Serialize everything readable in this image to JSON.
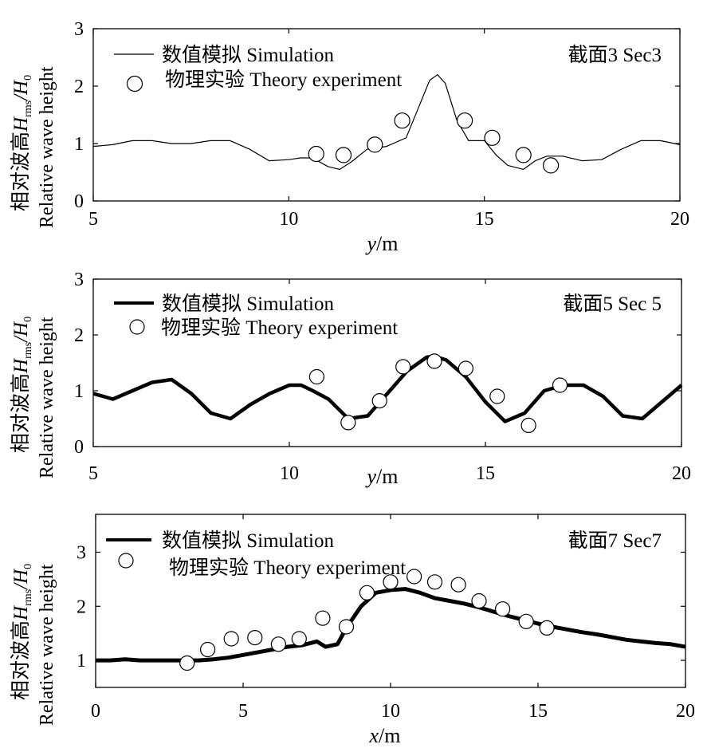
{
  "chart_data": [
    {
      "type": "line",
      "section_label": "截面3 Sec3",
      "xlabel_var": "y",
      "xlabel_unit": "/m",
      "ylabel_cn": "相对波高",
      "ylabel_var": "H",
      "ylabel_sub": "rms",
      "ylabel_tail": "/H",
      "ylabel_sub2": "0",
      "ylabel_en": "Relative wave height",
      "xlim": [
        5,
        20
      ],
      "ylim": [
        0,
        3
      ],
      "xticks": [
        5,
        10,
        15,
        20
      ],
      "yticks": [
        0,
        1,
        2,
        3
      ],
      "series": [
        {
          "name": "数值模拟 Simulation",
          "style": "thin-line",
          "x": [
            5.0,
            5.5,
            6.0,
            6.5,
            7.0,
            7.5,
            8.0,
            8.5,
            9.0,
            9.5,
            10.0,
            10.3,
            10.6,
            11.0,
            11.3,
            11.6,
            12.0,
            12.5,
            13.0,
            13.3,
            13.6,
            13.8,
            14.0,
            14.3,
            14.6,
            15.0,
            15.3,
            15.6,
            16.0,
            16.3,
            16.6,
            17.0,
            17.5,
            18.0,
            18.5,
            19.0,
            19.5,
            20.0
          ],
          "y": [
            0.95,
            0.98,
            1.05,
            1.05,
            1.0,
            1.0,
            1.05,
            1.05,
            0.9,
            0.7,
            0.72,
            0.75,
            0.75,
            0.6,
            0.55,
            0.68,
            0.9,
            0.95,
            1.1,
            1.6,
            2.1,
            2.2,
            2.05,
            1.4,
            1.05,
            1.05,
            0.8,
            0.62,
            0.55,
            0.7,
            0.78,
            0.78,
            0.7,
            0.72,
            0.9,
            1.05,
            1.05,
            0.98
          ]
        },
        {
          "name": "物理实验  Theory experiment",
          "style": "circles",
          "x": [
            10.7,
            11.4,
            12.2,
            12.9,
            14.5,
            15.2,
            16.0,
            16.7
          ],
          "y": [
            0.82,
            0.8,
            0.98,
            1.4,
            1.4,
            1.1,
            0.8,
            0.62
          ]
        }
      ]
    },
    {
      "type": "line",
      "section_label": "截面5  Sec 5",
      "xlabel_var": "y",
      "xlabel_unit": "/m",
      "ylabel_cn": "相对波高",
      "ylabel_var": "H",
      "ylabel_sub": "rms",
      "ylabel_tail": "/H",
      "ylabel_sub2": "0",
      "ylabel_en": "Relative wave height",
      "xlim": [
        5,
        20
      ],
      "ylim": [
        0,
        3
      ],
      "xticks": [
        5,
        10,
        15,
        20
      ],
      "yticks": [
        0,
        1,
        2,
        3
      ],
      "series": [
        {
          "name": "数值模拟 Simulation",
          "style": "thick-line",
          "x": [
            5.0,
            5.5,
            6.0,
            6.5,
            7.0,
            7.5,
            8.0,
            8.5,
            9.0,
            9.5,
            10.0,
            10.3,
            10.6,
            11.0,
            11.5,
            12.0,
            12.5,
            13.0,
            13.5,
            13.7,
            14.0,
            14.5,
            15.0,
            15.5,
            16.0,
            16.5,
            17.0,
            17.5,
            18.0,
            18.5,
            19.0,
            19.5,
            20.0
          ],
          "y": [
            0.95,
            0.85,
            1.0,
            1.15,
            1.2,
            0.95,
            0.6,
            0.5,
            0.75,
            0.95,
            1.1,
            1.1,
            1.0,
            0.85,
            0.5,
            0.55,
            0.95,
            1.35,
            1.6,
            1.62,
            1.55,
            1.25,
            0.8,
            0.45,
            0.6,
            1.0,
            1.1,
            1.1,
            0.9,
            0.55,
            0.5,
            0.8,
            1.1
          ]
        },
        {
          "name": "物理实验 Theory  experiment",
          "style": "circles",
          "x": [
            10.7,
            11.5,
            12.3,
            12.9,
            13.7,
            14.5,
            15.3,
            16.1,
            16.9
          ],
          "y": [
            1.25,
            0.43,
            0.82,
            1.43,
            1.53,
            1.4,
            0.9,
            0.38,
            1.1
          ]
        }
      ]
    },
    {
      "type": "line",
      "section_label": "截面7  Sec7",
      "xlabel_var": "x",
      "xlabel_unit": "/m",
      "ylabel_cn": "相对波高",
      "ylabel_var": "H",
      "ylabel_sub": "rms",
      "ylabel_tail": "/H",
      "ylabel_sub2": "0",
      "ylabel_en": "Relative wave height",
      "xlim": [
        0,
        20
      ],
      "ylim": [
        0.5,
        3.7
      ],
      "xticks": [
        0,
        5,
        10,
        15,
        20
      ],
      "yticks": [
        1,
        2,
        3
      ],
      "series": [
        {
          "name": "数值模拟  Simulation",
          "style": "thick-line",
          "x": [
            0,
            0.5,
            1,
            1.5,
            2,
            2.5,
            3,
            3.5,
            4,
            4.5,
            5,
            5.5,
            6,
            6.5,
            7,
            7.5,
            7.8,
            8.2,
            8.5,
            9,
            9.5,
            10,
            10.5,
            11,
            11.5,
            12,
            12.5,
            13,
            13.5,
            14,
            14.5,
            15,
            15.5,
            16,
            16.5,
            17,
            17.5,
            18,
            18.5,
            19,
            19.5,
            20
          ],
          "y": [
            1.0,
            1.0,
            1.02,
            1.0,
            1.0,
            1.0,
            1.0,
            1.0,
            1.02,
            1.05,
            1.1,
            1.15,
            1.2,
            1.25,
            1.28,
            1.35,
            1.25,
            1.3,
            1.6,
            2.0,
            2.25,
            2.3,
            2.32,
            2.25,
            2.15,
            2.1,
            2.05,
            1.98,
            1.9,
            1.82,
            1.75,
            1.68,
            1.62,
            1.57,
            1.52,
            1.48,
            1.43,
            1.38,
            1.35,
            1.32,
            1.3,
            1.25
          ]
        },
        {
          "name": "物理实验 Theory  experiment",
          "style": "circles",
          "x": [
            3.1,
            3.8,
            4.6,
            5.4,
            6.2,
            6.9,
            7.7,
            8.5,
            9.2,
            10.0,
            10.8,
            11.5,
            12.3,
            13.0,
            13.8,
            14.6,
            15.3
          ],
          "y": [
            0.95,
            1.2,
            1.4,
            1.42,
            1.3,
            1.4,
            1.78,
            1.62,
            2.25,
            2.45,
            2.55,
            2.45,
            2.4,
            2.1,
            1.95,
            1.72,
            1.6
          ]
        }
      ]
    }
  ]
}
